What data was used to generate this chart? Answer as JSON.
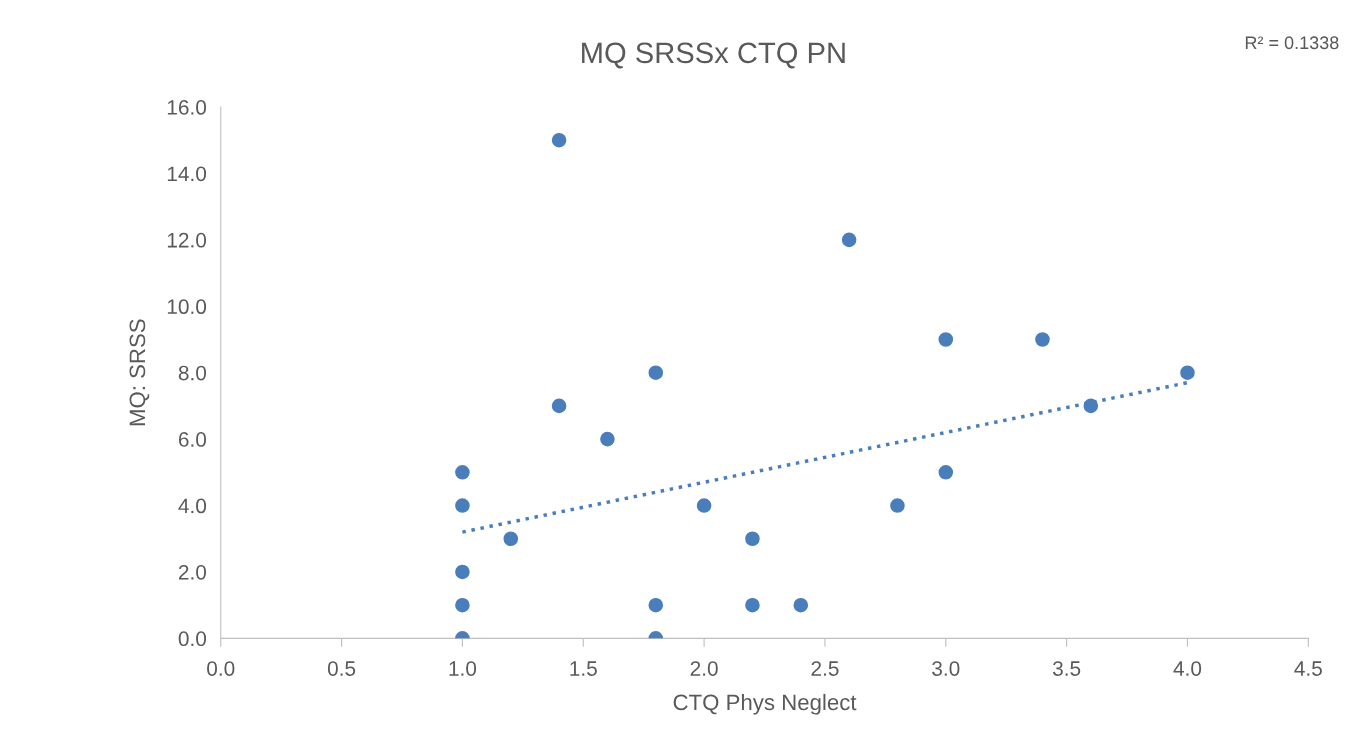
{
  "chart_data": {
    "type": "scatter",
    "title": "MQ SRSSx CTQ PN",
    "xlabel": "CTQ Phys Neglect",
    "ylabel": "MQ: SRSS",
    "annotations": [
      "R² = 0.1338"
    ],
    "xlim": [
      0,
      4.5
    ],
    "ylim": [
      0,
      16
    ],
    "xticks": [
      {
        "value": 0,
        "label": "0.0"
      },
      {
        "value": 0.5,
        "label": "0.5"
      },
      {
        "value": 1,
        "label": "1.0"
      },
      {
        "value": 1.5,
        "label": "1.5"
      },
      {
        "value": 2,
        "label": "2.0"
      },
      {
        "value": 2.5,
        "label": "2.5"
      },
      {
        "value": 3,
        "label": "3.0"
      },
      {
        "value": 3.5,
        "label": "3.5"
      },
      {
        "value": 4,
        "label": "4.0"
      },
      {
        "value": 4.5,
        "label": "4.5"
      }
    ],
    "yticks": [
      {
        "value": 0,
        "label": "0.0"
      },
      {
        "value": 2,
        "label": "2.0"
      },
      {
        "value": 4,
        "label": "4.0"
      },
      {
        "value": 6,
        "label": "6.0"
      },
      {
        "value": 8,
        "label": "8.0"
      },
      {
        "value": 10,
        "label": "10.0"
      },
      {
        "value": 12,
        "label": "12.0"
      },
      {
        "value": 14,
        "label": "14.0"
      },
      {
        "value": 16,
        "label": "16.0"
      }
    ],
    "marker": "circle",
    "series": [
      {
        "color": "#4a7ebb",
        "x": [
          1.4,
          2.6,
          3.0,
          3.4,
          1.8,
          4.0,
          1.4,
          3.6,
          1.6,
          1.0,
          3.0,
          1.0,
          2.0,
          2.8,
          1.2,
          2.2,
          1.0,
          1.0,
          1.8,
          2.2,
          2.4,
          1.0,
          1.8
        ],
        "values": [
          15,
          12,
          9,
          9,
          8,
          8,
          7,
          7,
          6,
          5,
          5,
          4,
          4,
          4,
          3,
          3,
          2,
          1,
          1,
          1,
          1,
          0,
          0
        ]
      },
      {
        "type": "line",
        "color": "#4a7ebb",
        "line_style": "dotted",
        "marker": "none",
        "x": [
          1.0,
          4.0
        ],
        "values": [
          3.2,
          7.7
        ]
      }
    ]
  }
}
